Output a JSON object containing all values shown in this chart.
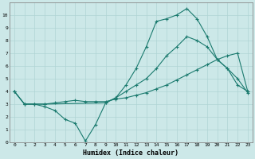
{
  "xlabel": "Humidex (Indice chaleur)",
  "bg_color": "#cce8e8",
  "line_color": "#1a7a6e",
  "xlim": [
    -0.5,
    23.5
  ],
  "ylim": [
    0,
    11
  ],
  "xticks": [
    0,
    1,
    2,
    3,
    4,
    5,
    6,
    7,
    8,
    9,
    10,
    11,
    12,
    13,
    14,
    15,
    16,
    17,
    18,
    19,
    20,
    21,
    22,
    23
  ],
  "yticks": [
    0,
    1,
    2,
    3,
    4,
    5,
    6,
    7,
    8,
    9,
    10
  ],
  "grid_color": "#b0d4d4",
  "series1_x": [
    0,
    1,
    2,
    3,
    4,
    5,
    6,
    7,
    8,
    9,
    10,
    11,
    12,
    13,
    14,
    15,
    16,
    17,
    18,
    19,
    20,
    21,
    22,
    23
  ],
  "series1_y": [
    4.0,
    3.0,
    3.0,
    2.8,
    2.5,
    1.8,
    1.5,
    0.1,
    1.4,
    3.1,
    3.5,
    4.0,
    4.5,
    5.0,
    5.8,
    6.8,
    7.5,
    8.3,
    8.0,
    7.5,
    6.5,
    5.8,
    5.0,
    3.9
  ],
  "series2_x": [
    0,
    1,
    2,
    3,
    4,
    5,
    6,
    7,
    8,
    9,
    10,
    11,
    12,
    13,
    14,
    15,
    16,
    17,
    18,
    19,
    20,
    21,
    22,
    23
  ],
  "series2_y": [
    4.0,
    3.0,
    3.0,
    3.0,
    3.1,
    3.2,
    3.3,
    3.2,
    3.2,
    3.2,
    3.4,
    3.5,
    3.7,
    3.9,
    4.2,
    4.5,
    4.9,
    5.3,
    5.7,
    6.1,
    6.5,
    6.8,
    7.0,
    4.0
  ],
  "series3_x": [
    0,
    1,
    2,
    3,
    9,
    10,
    11,
    12,
    13,
    14,
    15,
    16,
    17,
    18,
    19,
    20,
    21,
    22,
    23
  ],
  "series3_y": [
    4.0,
    3.0,
    3.0,
    3.0,
    3.1,
    3.5,
    4.5,
    5.8,
    7.5,
    9.5,
    9.7,
    10.0,
    10.5,
    9.7,
    8.3,
    6.5,
    5.8,
    4.5,
    4.0
  ]
}
